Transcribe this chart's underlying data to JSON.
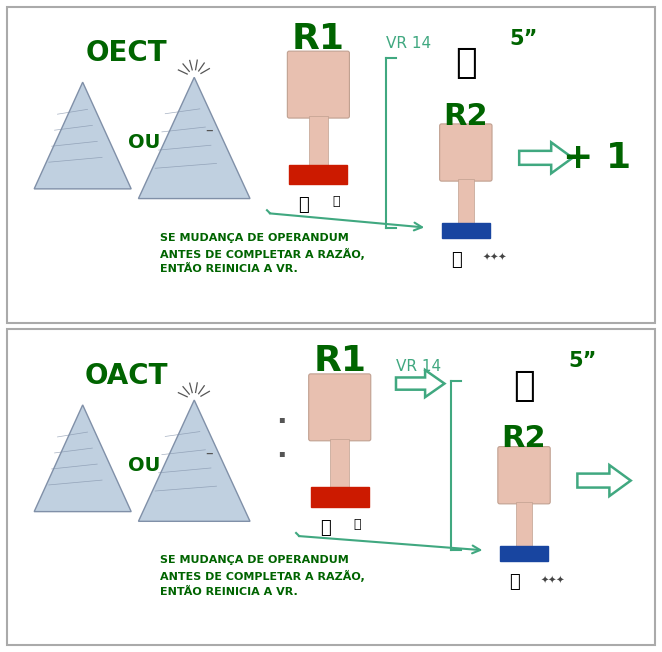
{
  "fig_w": 6.62,
  "fig_h": 6.52,
  "dpi": 100,
  "bg": "#ffffff",
  "green": "#006400",
  "teal": "#40a880",
  "mountain_fill": "#c0d0e0",
  "mountain_edge": "#8090a8",
  "btn_fill": "#e8c0b0",
  "btn_edge": "#c0a090",
  "red_fill": "#cc1a00",
  "blue_fill": "#1845a0",
  "panel1": {
    "oect": "OECT",
    "ou": "OU",
    "r1": "R1",
    "vr14": "VR 14",
    "five": "5”",
    "r2": "R2",
    "plus1": "+ 1",
    "note": "SE MUDANÇA DE OPERANDUM\nANTES DE COMPLETAR A RAZÃO,\nENTÃO REINICIA A VR."
  },
  "panel2": {
    "oact": "OACT",
    "ou": "OU",
    "r1": "R1",
    "vr14": "VR 14",
    "five": "5”",
    "r2": "R2",
    "note": "SE MUDANÇA DE OPERANDUM\nANTES DE COMPLETAR A RAZÃO,\nENTÃO REINICIA A VR."
  }
}
